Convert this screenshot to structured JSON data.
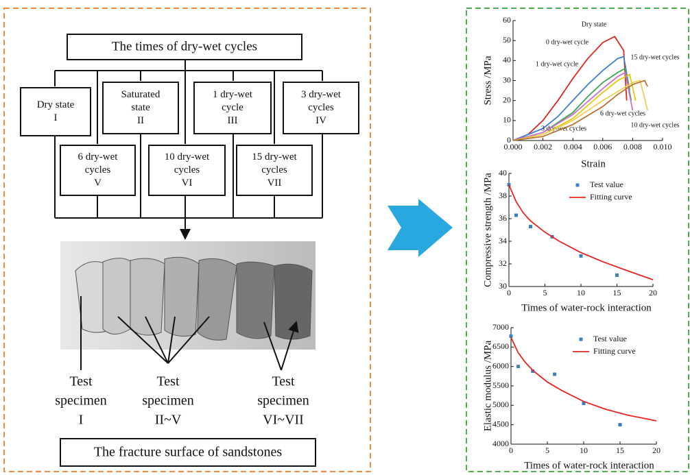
{
  "flowchart": {
    "title": "The times of dry-wet cycles",
    "nodes": [
      {
        "lines": [
          "Dry state",
          "I"
        ]
      },
      {
        "lines": [
          "Saturated",
          "state",
          "II"
        ]
      },
      {
        "lines": [
          "1 dry-wet",
          "cycle",
          "III"
        ]
      },
      {
        "lines": [
          "3 dry-wet",
          "cycles",
          "IV"
        ]
      },
      {
        "lines": [
          "6 dry-wet",
          "cycles",
          "V"
        ]
      },
      {
        "lines": [
          "10 dry-wet",
          "cycles",
          "VI"
        ]
      },
      {
        "lines": [
          "15 dry-wet",
          "cycles",
          "VII"
        ]
      }
    ],
    "specimens": [
      {
        "lines": [
          "Test",
          "specimen",
          "I"
        ]
      },
      {
        "lines": [
          "Test",
          "specimen",
          "II~V"
        ]
      },
      {
        "lines": [
          "Test",
          "specimen",
          "VI~VII"
        ]
      }
    ],
    "caption": "The fracture surface of sandstones"
  },
  "chart_data": [
    {
      "type": "line",
      "xlabel": "Strain",
      "ylabel": "Stress /MPa",
      "xlim": [
        0,
        0.01
      ],
      "ylim": [
        0,
        60
      ],
      "xticks": [
        {
          "value": 0,
          "label": "0.000"
        },
        {
          "value": 0.002,
          "label": "0.002"
        },
        {
          "value": 0.004,
          "label": "0.004"
        },
        {
          "value": 0.006,
          "label": "0.006"
        },
        {
          "value": 0.008,
          "label": "0.008"
        },
        {
          "value": 0.01,
          "label": "0.010"
        }
      ],
      "yticks": [
        0,
        10,
        20,
        30,
        40,
        50,
        60
      ],
      "series": [
        {
          "name": "Dry state",
          "color": "#e0261e",
          "x": [
            0,
            0.001,
            0.002,
            0.003,
            0.004,
            0.005,
            0.006,
            0.0068,
            0.0074,
            0.0076
          ],
          "values": [
            0,
            3,
            10,
            20,
            31,
            41,
            49,
            52,
            45,
            20
          ]
        },
        {
          "name": "0 dry-wet cycle",
          "color": "#3a7fd0",
          "x": [
            0,
            0.002,
            0.003,
            0.004,
            0.005,
            0.006,
            0.007,
            0.0074,
            0.0078
          ],
          "values": [
            0,
            6,
            12,
            20,
            28,
            35,
            41,
            42,
            25
          ]
        },
        {
          "name": "1 dry-wet cycle",
          "color": "#3aa655",
          "x": [
            0,
            0.002,
            0.004,
            0.005,
            0.006,
            0.007,
            0.0075,
            0.0079
          ],
          "values": [
            0,
            4,
            14,
            22,
            29,
            34,
            36,
            20
          ]
        },
        {
          "name": "3 dry-wet cycles",
          "color": "#e8c800",
          "x": [
            0,
            0.002,
            0.004,
            0.006,
            0.007,
            0.0078,
            0.0082
          ],
          "values": [
            0,
            3,
            11,
            24,
            30,
            33,
            20
          ]
        },
        {
          "name": "6 dry-wet cycles",
          "color": "#d070c0",
          "x": [
            0,
            0.002,
            0.004,
            0.006,
            0.007,
            0.0075,
            0.008
          ],
          "values": [
            0,
            4,
            13,
            26,
            32,
            34,
            15
          ]
        },
        {
          "name": "10 dry-wet cycles",
          "color": "#f0d050",
          "x": [
            0,
            0.002,
            0.004,
            0.006,
            0.008,
            0.0085,
            0.009
          ],
          "values": [
            0,
            3,
            10,
            20,
            29,
            30,
            15
          ]
        },
        {
          "name": "15 dry-wet cycles",
          "color": "#b87333",
          "x": [
            0,
            0.002,
            0.004,
            0.006,
            0.007,
            0.008,
            0.0088,
            0.009
          ],
          "values": [
            0,
            2,
            8,
            17,
            23,
            28,
            30,
            27
          ]
        }
      ]
    },
    {
      "type": "scatter",
      "xlabel": "Times of water-rock interaction",
      "ylabel": "Compressive strength /MPa",
      "xlim": [
        0,
        20
      ],
      "ylim": [
        30,
        40
      ],
      "xticks": [
        0,
        5,
        10,
        15,
        20
      ],
      "yticks": [
        30,
        32,
        34,
        36,
        38,
        40
      ],
      "legend": "upper right",
      "series": [
        {
          "name": "Test value",
          "color": "#3b7fc4",
          "mode": "markers",
          "x": [
            0,
            1,
            3,
            6,
            10,
            15
          ],
          "values": [
            39,
            36.3,
            35.3,
            34.4,
            32.7,
            31.0
          ]
        },
        {
          "name": "Fitting curve",
          "color": "#e8231f",
          "mode": "line",
          "x": [
            0,
            1,
            2,
            3,
            5,
            7,
            10,
            13,
            16,
            20
          ],
          "values": [
            39.0,
            37.5,
            36.5,
            35.8,
            34.8,
            34.0,
            33.0,
            32.2,
            31.5,
            30.6
          ]
        }
      ]
    },
    {
      "type": "scatter",
      "xlabel": "Times of water-rock interaction",
      "ylabel": "Elastic modulus /MPa",
      "xlim": [
        0,
        20
      ],
      "ylim": [
        4000,
        7000
      ],
      "xticks": [
        0,
        5,
        10,
        15,
        20
      ],
      "yticks": [
        4000,
        4500,
        5000,
        5500,
        6000,
        6500,
        7000
      ],
      "legend": "upper right",
      "series": [
        {
          "name": "Test value",
          "color": "#3b7fc4",
          "mode": "markers",
          "x": [
            0,
            1,
            3,
            6,
            10,
            15
          ],
          "values": [
            6780,
            6000,
            5880,
            5800,
            5050,
            4500
          ]
        },
        {
          "name": "Fitting curve",
          "color": "#e8231f",
          "mode": "line",
          "x": [
            0,
            1,
            2,
            3,
            5,
            7,
            10,
            13,
            16,
            20
          ],
          "values": [
            6750,
            6350,
            6100,
            5900,
            5600,
            5380,
            5100,
            4900,
            4750,
            4600
          ]
        }
      ]
    }
  ]
}
